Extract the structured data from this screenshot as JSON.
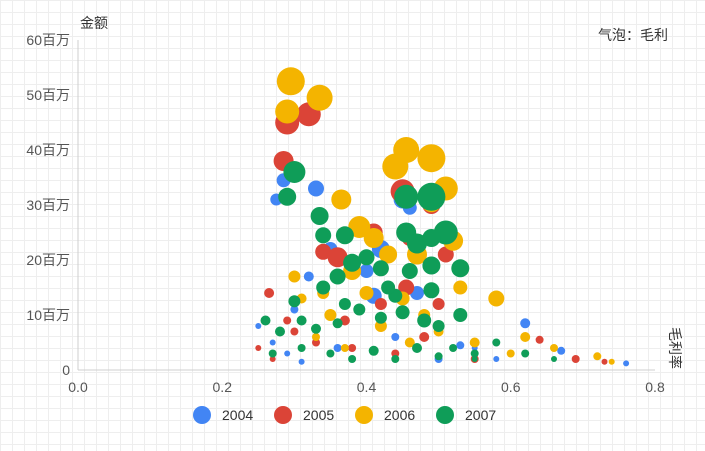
{
  "chart_data": {
    "type": "scatter",
    "subtype": "bubble",
    "ylabel": "金额",
    "xlabel": "毛利率",
    "size_label": "气泡：毛利",
    "xlim": [
      0,
      0.8
    ],
    "ylim": [
      0,
      60
    ],
    "x_ticks": [
      "0.0",
      "0.2",
      "0.4",
      "0.6",
      "0.8"
    ],
    "y_ticks": [
      "0",
      "10百万",
      "20百万",
      "30百万",
      "40百万",
      "50百万",
      "60百万"
    ],
    "legend_position": "bottom",
    "series": [
      {
        "name": "2004",
        "color": "#4285F4",
        "points": [
          [
            0.275,
            31,
            6
          ],
          [
            0.285,
            34.5,
            7
          ],
          [
            0.33,
            33,
            8
          ],
          [
            0.45,
            31,
            9
          ],
          [
            0.46,
            29.5,
            7
          ],
          [
            0.42,
            22,
            9
          ],
          [
            0.4,
            18,
            7
          ],
          [
            0.41,
            13.5,
            8
          ],
          [
            0.62,
            8.5,
            5
          ],
          [
            0.67,
            3.5,
            4
          ],
          [
            0.76,
            1.2,
            3
          ],
          [
            0.3,
            11,
            4
          ],
          [
            0.29,
            3,
            3
          ],
          [
            0.36,
            4,
            4
          ],
          [
            0.44,
            6,
            4
          ],
          [
            0.5,
            2,
            4
          ],
          [
            0.55,
            4,
            3
          ],
          [
            0.32,
            17,
            5
          ],
          [
            0.25,
            8,
            3
          ],
          [
            0.31,
            1.5,
            3
          ],
          [
            0.58,
            2,
            3
          ],
          [
            0.35,
            22,
            7
          ],
          [
            0.47,
            14,
            7
          ],
          [
            0.53,
            4.5,
            4
          ],
          [
            0.27,
            5,
            3
          ]
        ]
      },
      {
        "name": "2005",
        "color": "#DB4437",
        "points": [
          [
            0.29,
            45,
            12
          ],
          [
            0.32,
            46.5,
            12
          ],
          [
            0.285,
            38,
            10
          ],
          [
            0.45,
            32.5,
            12
          ],
          [
            0.49,
            30,
            9
          ],
          [
            0.34,
            21.5,
            8
          ],
          [
            0.36,
            20.5,
            10
          ],
          [
            0.41,
            25,
            9
          ],
          [
            0.46,
            24,
            8
          ],
          [
            0.51,
            21,
            8
          ],
          [
            0.455,
            15,
            8
          ],
          [
            0.265,
            14,
            5
          ],
          [
            0.29,
            9,
            4
          ],
          [
            0.33,
            5,
            4
          ],
          [
            0.38,
            4,
            4
          ],
          [
            0.5,
            12,
            6
          ],
          [
            0.6,
            3,
            3
          ],
          [
            0.64,
            5.5,
            4
          ],
          [
            0.69,
            2,
            4
          ],
          [
            0.73,
            1.5,
            3
          ],
          [
            0.25,
            4,
            3
          ],
          [
            0.3,
            7,
            4
          ],
          [
            0.44,
            3,
            4
          ],
          [
            0.55,
            2,
            4
          ],
          [
            0.48,
            6,
            5
          ],
          [
            0.37,
            9,
            5
          ],
          [
            0.42,
            12,
            6
          ],
          [
            0.27,
            2,
            3
          ]
        ]
      },
      {
        "name": "2006",
        "color": "#F4B400",
        "points": [
          [
            0.295,
            52.5,
            14
          ],
          [
            0.335,
            49.5,
            13
          ],
          [
            0.29,
            47,
            12
          ],
          [
            0.44,
            37,
            13
          ],
          [
            0.455,
            40,
            13
          ],
          [
            0.49,
            38.5,
            14
          ],
          [
            0.51,
            33,
            12
          ],
          [
            0.49,
            30.5,
            10
          ],
          [
            0.365,
            31,
            10
          ],
          [
            0.39,
            26,
            11
          ],
          [
            0.41,
            24,
            10
          ],
          [
            0.43,
            21,
            9
          ],
          [
            0.52,
            23.5,
            10
          ],
          [
            0.38,
            18,
            9
          ],
          [
            0.47,
            21,
            10
          ],
          [
            0.58,
            13,
            8
          ],
          [
            0.53,
            15,
            7
          ],
          [
            0.3,
            17,
            6
          ],
          [
            0.34,
            14,
            6
          ],
          [
            0.45,
            13,
            7
          ],
          [
            0.31,
            13,
            5
          ],
          [
            0.26,
            9,
            4
          ],
          [
            0.28,
            7,
            4
          ],
          [
            0.33,
            6,
            4
          ],
          [
            0.37,
            4,
            4
          ],
          [
            0.42,
            8,
            6
          ],
          [
            0.46,
            5,
            5
          ],
          [
            0.5,
            7,
            5
          ],
          [
            0.55,
            5,
            5
          ],
          [
            0.6,
            3,
            4
          ],
          [
            0.62,
            6,
            5
          ],
          [
            0.66,
            4,
            4
          ],
          [
            0.72,
            2.5,
            4
          ],
          [
            0.74,
            1.5,
            3
          ],
          [
            0.4,
            14,
            7
          ],
          [
            0.35,
            10,
            6
          ],
          [
            0.48,
            10,
            6
          ]
        ]
      },
      {
        "name": "2007",
        "color": "#0F9D58",
        "points": [
          [
            0.3,
            36,
            11
          ],
          [
            0.29,
            31.5,
            9
          ],
          [
            0.335,
            28,
            9
          ],
          [
            0.34,
            24.5,
            8
          ],
          [
            0.37,
            24.5,
            9
          ],
          [
            0.455,
            31.5,
            12
          ],
          [
            0.49,
            31.5,
            14
          ],
          [
            0.455,
            25,
            10
          ],
          [
            0.47,
            23,
            10
          ],
          [
            0.51,
            25,
            12
          ],
          [
            0.49,
            24,
            9
          ],
          [
            0.4,
            20.5,
            8
          ],
          [
            0.38,
            19.5,
            9
          ],
          [
            0.42,
            18.5,
            8
          ],
          [
            0.46,
            18,
            8
          ],
          [
            0.53,
            18.5,
            9
          ],
          [
            0.36,
            17,
            8
          ],
          [
            0.34,
            15,
            7
          ],
          [
            0.44,
            13.5,
            7
          ],
          [
            0.49,
            14.5,
            8
          ],
          [
            0.53,
            10,
            7
          ],
          [
            0.3,
            12.5,
            6
          ],
          [
            0.26,
            9,
            5
          ],
          [
            0.28,
            7,
            5
          ],
          [
            0.31,
            9,
            5
          ],
          [
            0.33,
            7.5,
            5
          ],
          [
            0.36,
            8.5,
            5
          ],
          [
            0.39,
            11,
            6
          ],
          [
            0.42,
            9.5,
            6
          ],
          [
            0.45,
            10.5,
            7
          ],
          [
            0.48,
            9,
            7
          ],
          [
            0.5,
            8,
            6
          ],
          [
            0.27,
            3,
            4
          ],
          [
            0.31,
            4,
            4
          ],
          [
            0.35,
            3,
            4
          ],
          [
            0.38,
            2,
            4
          ],
          [
            0.41,
            3.5,
            5
          ],
          [
            0.44,
            2,
            4
          ],
          [
            0.47,
            4,
            5
          ],
          [
            0.5,
            2.5,
            4
          ],
          [
            0.52,
            4,
            4
          ],
          [
            0.55,
            3,
            4
          ],
          [
            0.58,
            5,
            4
          ],
          [
            0.62,
            3,
            4
          ],
          [
            0.66,
            2,
            3
          ],
          [
            0.49,
            19,
            9
          ],
          [
            0.43,
            15,
            7
          ],
          [
            0.37,
            12,
            6
          ],
          [
            0.55,
            2,
            3
          ]
        ]
      }
    ]
  }
}
